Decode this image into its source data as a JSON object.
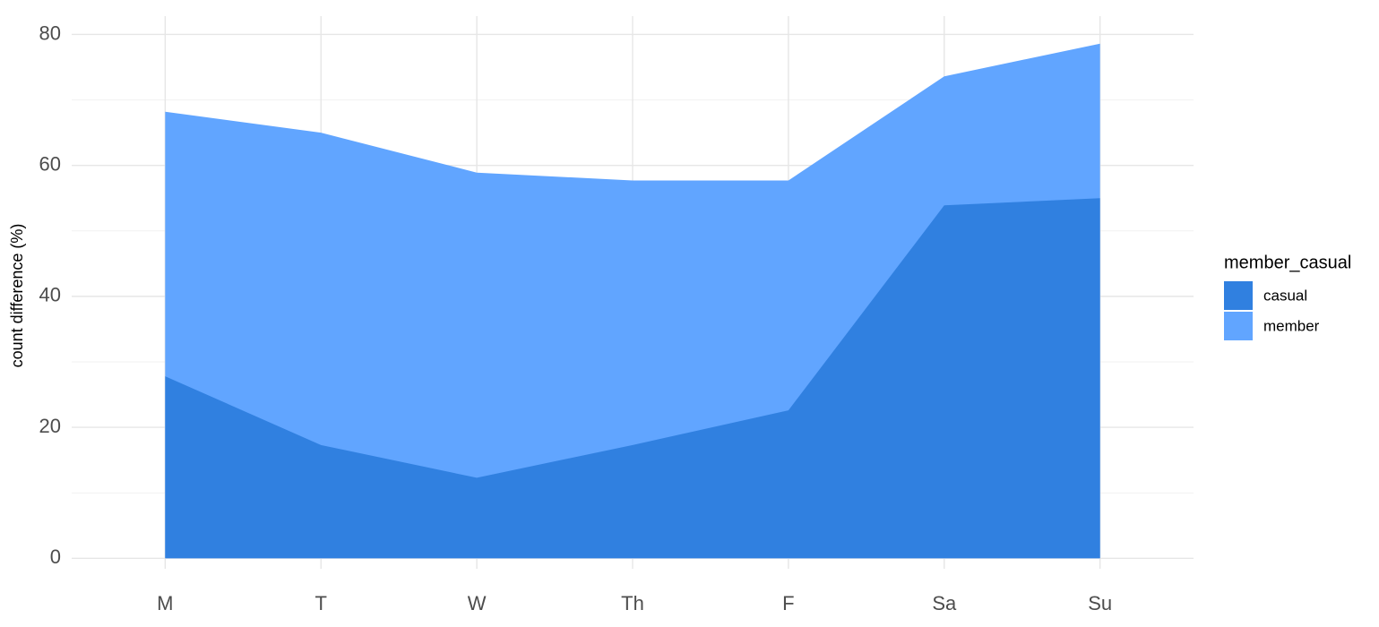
{
  "chart_data": {
    "type": "area",
    "y_label": "count difference (%)",
    "categories": [
      "M",
      "T",
      "W",
      "Th",
      "F",
      "Sa",
      "Su"
    ],
    "series": [
      {
        "name": "member",
        "color": "#61a5ff",
        "values": [
          68.2,
          65.0,
          58.9,
          57.7,
          57.7,
          73.6,
          78.6
        ]
      },
      {
        "name": "casual",
        "color": "#3080e0",
        "values": [
          27.8,
          17.3,
          12.3,
          17.3,
          22.6,
          53.9,
          55.0
        ]
      }
    ],
    "legend_title": "member_casual",
    "legend_order": [
      "casual",
      "member"
    ],
    "ylim": [
      -1.6,
      82.8
    ],
    "yticks": [
      0,
      20,
      40,
      60,
      80
    ],
    "grid": true,
    "legend_position": "right"
  }
}
